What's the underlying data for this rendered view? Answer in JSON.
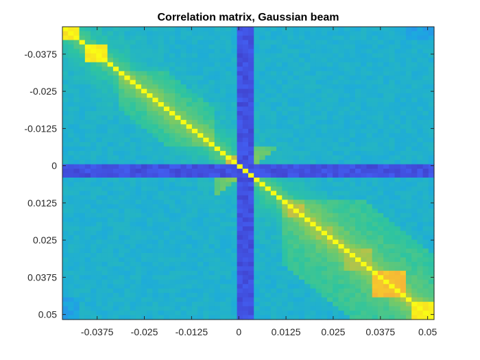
{
  "chart_data": {
    "type": "heatmap",
    "title": "Correlation matrix, Gaussian beam",
    "xlabel": "",
    "ylabel": "",
    "x_ticks": [
      "-0.0375",
      "-0.025",
      "-0.0125",
      "0",
      "0.0125",
      "0.025",
      "0.0375",
      "0.05"
    ],
    "y_ticks": [
      "-0.0375",
      "-0.025",
      "-0.0125",
      "0",
      "0.0125",
      "0.025",
      "0.0375",
      "0.05"
    ],
    "xlim": [
      -0.0467,
      0.0517
    ],
    "ylim": [
      -0.0467,
      0.0517
    ],
    "y_direction": "reversed",
    "grid": false,
    "legend": "none",
    "colormap": "parula",
    "colormap_stops": [
      "#3e26a8",
      "#4367fd",
      "#1ca9df",
      "#2ec4a0",
      "#89cb58",
      "#f5b636",
      "#f9fb15"
    ],
    "value_range": [
      0,
      1
    ],
    "diagonal_blocks": [
      {
        "from": -0.046,
        "to": -0.042,
        "value": 0.97
      },
      {
        "from": -0.04,
        "to": -0.035,
        "value": 0.99
      },
      {
        "from": -0.03,
        "to": -0.027,
        "value": 0.72
      },
      {
        "from": -0.024,
        "to": -0.021,
        "value": 0.68
      },
      {
        "from": -0.017,
        "to": -0.014,
        "value": 0.66
      },
      {
        "from": -0.011,
        "to": -0.009,
        "value": 0.64
      },
      {
        "from": 0.013,
        "to": 0.017,
        "value": 0.78
      },
      {
        "from": 0.02,
        "to": 0.025,
        "value": 0.72
      },
      {
        "from": 0.028,
        "to": 0.035,
        "value": 0.74
      },
      {
        "from": 0.036,
        "to": 0.044,
        "value": 0.88
      },
      {
        "from": 0.046,
        "to": 0.051,
        "value": 0.98
      }
    ],
    "low_correlation_band": {
      "from": -0.001,
      "to": 0.004,
      "value": 0.08
    },
    "background_value": 0.38
  }
}
